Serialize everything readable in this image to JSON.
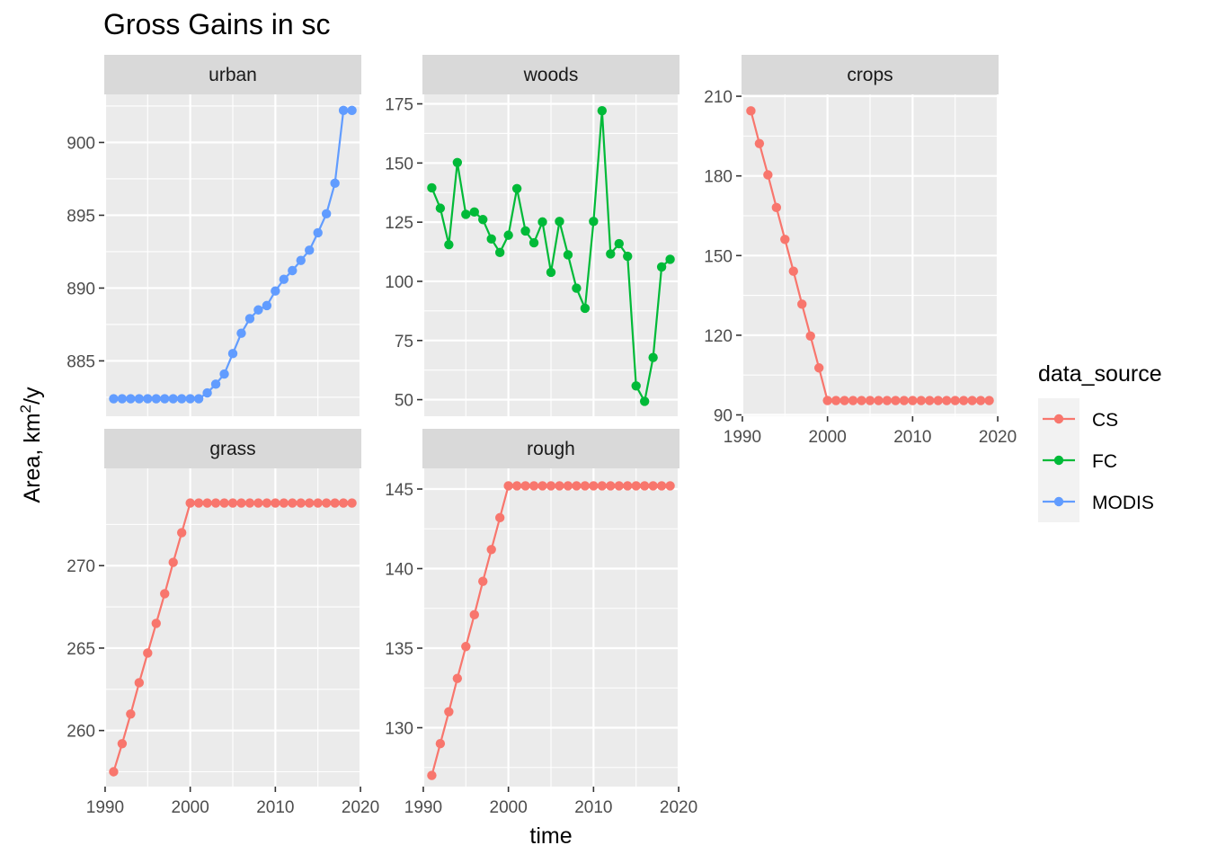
{
  "chart_data": {
    "type": "line",
    "title": "Gross Gains in sc",
    "xlabel": "time",
    "ylabel": "Area,  km²/y",
    "ylabel_parts": {
      "base": "Area,  km",
      "sup": "2",
      "tail": "/y"
    },
    "legend": {
      "title": "data_source",
      "placement": "right",
      "entries": [
        {
          "label": "CS",
          "color": "#F8766D"
        },
        {
          "label": "FC",
          "color": "#00BA38"
        },
        {
          "label": "MODIS",
          "color": "#619CFF"
        }
      ]
    },
    "panels": [
      {
        "name": "urban",
        "source": "MODIS",
        "color": "#619CFF",
        "xlim": [
          1989.9,
          2020.1
        ],
        "ylim": [
          881.2,
          903.3
        ],
        "xticks": [
          1990,
          2000,
          2010,
          2020
        ],
        "yticks": [
          885,
          890,
          895,
          900
        ],
        "x": [
          1991,
          1992,
          1993,
          1994,
          1995,
          1996,
          1997,
          1998,
          1999,
          2000,
          2001,
          2002,
          2003,
          2004,
          2005,
          2006,
          2007,
          2008,
          2009,
          2010,
          2011,
          2012,
          2013,
          2014,
          2015,
          2016,
          2017,
          2018,
          2019
        ],
        "y": [
          882.4,
          882.4,
          882.4,
          882.4,
          882.4,
          882.4,
          882.4,
          882.4,
          882.4,
          882.4,
          882.4,
          882.8,
          883.4,
          884.1,
          885.5,
          886.9,
          887.9,
          888.5,
          888.8,
          889.8,
          890.6,
          891.2,
          891.9,
          892.6,
          893.8,
          895.1,
          897.2,
          902.2,
          902.2
        ]
      },
      {
        "name": "woods",
        "source": "FC",
        "color": "#00BA38",
        "xlim": [
          1989.9,
          2020.1
        ],
        "ylim": [
          43,
          179
        ],
        "xticks": [
          1990,
          2000,
          2010,
          2020
        ],
        "yticks": [
          50,
          75,
          100,
          125,
          150,
          175
        ],
        "x": [
          1991,
          1992,
          1993,
          1994,
          1995,
          1996,
          1997,
          1998,
          1999,
          2000,
          2001,
          2002,
          2003,
          2004,
          2005,
          2006,
          2007,
          2008,
          2009,
          2010,
          2011,
          2012,
          2013,
          2014,
          2015,
          2016,
          2017,
          2018,
          2019
        ],
        "y": [
          139.5,
          130.9,
          115.5,
          150.2,
          128.3,
          129.3,
          126.1,
          117.9,
          112.2,
          119.5,
          139.2,
          121.3,
          116.3,
          125.1,
          103.8,
          125.3,
          111.2,
          97.1,
          88.6,
          125.3,
          172.1,
          111.6,
          115.9,
          110.6,
          55.8,
          49.3,
          67.8,
          106.1,
          109.3
        ]
      },
      {
        "name": "crops",
        "source": "CS",
        "color": "#F8766D",
        "xlim": [
          1989.9,
          2020.1
        ],
        "ylim": [
          89.5,
          210.7
        ],
        "xticks": [
          1990,
          2000,
          2010,
          2020
        ],
        "yticks": [
          90,
          120,
          150,
          180,
          210
        ],
        "x": [
          1991,
          1992,
          1993,
          1994,
          1995,
          1996,
          1997,
          1998,
          1999,
          2000,
          2001,
          2002,
          2003,
          2004,
          2005,
          2006,
          2007,
          2008,
          2009,
          2010,
          2011,
          2012,
          2013,
          2014,
          2015,
          2016,
          2017,
          2018,
          2019
        ],
        "y": [
          204.5,
          192.2,
          180.4,
          168.1,
          156.1,
          144.1,
          131.7,
          119.7,
          107.7,
          95.4,
          95.4,
          95.4,
          95.4,
          95.4,
          95.4,
          95.4,
          95.4,
          95.4,
          95.4,
          95.4,
          95.4,
          95.4,
          95.4,
          95.4,
          95.4,
          95.4,
          95.4,
          95.4,
          95.4
        ]
      },
      {
        "name": "grass",
        "source": "CS",
        "color": "#F8766D",
        "xlim": [
          1989.9,
          2020.1
        ],
        "ylim": [
          256.6,
          275.9
        ],
        "xticks": [
          1990,
          2000,
          2010,
          2020
        ],
        "yticks": [
          260,
          265,
          270
        ],
        "x": [
          1991,
          1992,
          1993,
          1994,
          1995,
          1996,
          1997,
          1998,
          1999,
          2000,
          2001,
          2002,
          2003,
          2004,
          2005,
          2006,
          2007,
          2008,
          2009,
          2010,
          2011,
          2012,
          2013,
          2014,
          2015,
          2016,
          2017,
          2018,
          2019
        ],
        "y": [
          257.5,
          259.2,
          261.0,
          262.9,
          264.7,
          266.5,
          268.3,
          270.2,
          272.0,
          273.8,
          273.8,
          273.8,
          273.8,
          273.8,
          273.8,
          273.8,
          273.8,
          273.8,
          273.8,
          273.8,
          273.8,
          273.8,
          273.8,
          273.8,
          273.8,
          273.8,
          273.8,
          273.8,
          273.8
        ]
      },
      {
        "name": "rough",
        "source": "CS",
        "color": "#F8766D",
        "xlim": [
          1989.9,
          2020.1
        ],
        "ylim": [
          126.3,
          146.3
        ],
        "xticks": [
          1990,
          2000,
          2010,
          2020
        ],
        "yticks": [
          130,
          135,
          140,
          145
        ],
        "x": [
          1991,
          1992,
          1993,
          1994,
          1995,
          1996,
          1997,
          1998,
          1999,
          2000,
          2001,
          2002,
          2003,
          2004,
          2005,
          2006,
          2007,
          2008,
          2009,
          2010,
          2011,
          2012,
          2013,
          2014,
          2015,
          2016,
          2017,
          2018,
          2019
        ],
        "y": [
          127.0,
          129.0,
          131.0,
          133.1,
          135.1,
          137.1,
          139.2,
          141.2,
          143.2,
          145.2,
          145.2,
          145.2,
          145.2,
          145.2,
          145.2,
          145.2,
          145.2,
          145.2,
          145.2,
          145.2,
          145.2,
          145.2,
          145.2,
          145.2,
          145.2,
          145.2,
          145.2,
          145.2,
          145.2
        ]
      }
    ]
  }
}
